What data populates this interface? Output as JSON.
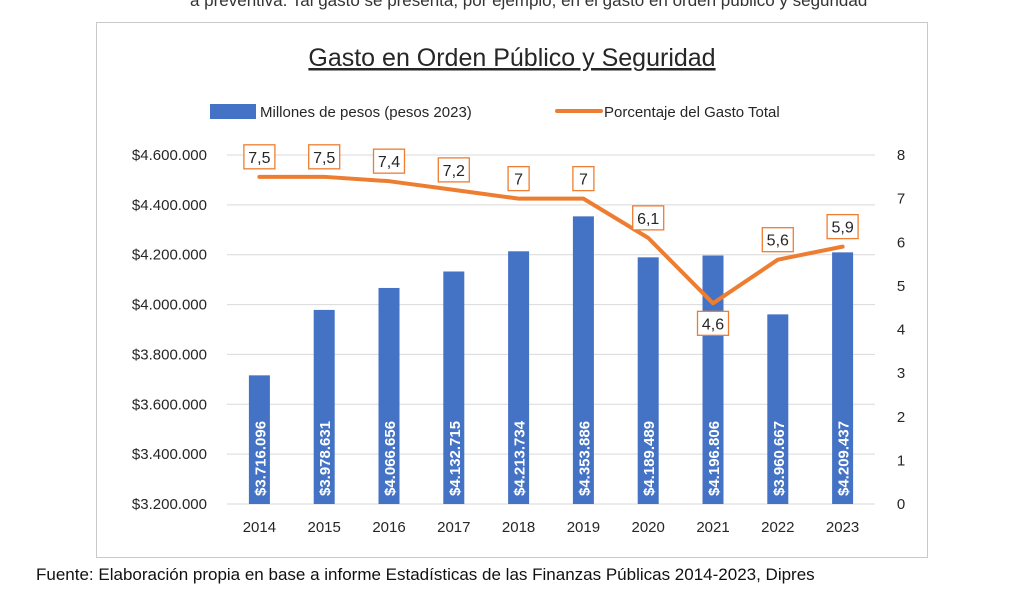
{
  "page": {
    "top_text": "a preventiva. Tal gasto se presenta, por ejemplo, en el gasto en orden público y seguridad",
    "source": "Fuente: Elaboración propia en base a informe Estadísticas de las Finanzas Públicas 2014-2023, Dipres"
  },
  "colors": {
    "bar": "#4472C4",
    "line": "#ED7D31",
    "text": "#262626"
  },
  "chart_data": {
    "type": "bar+line",
    "title": "Gasto en Orden Público y Seguridad",
    "categories": [
      "2014",
      "2015",
      "2016",
      "2017",
      "2018",
      "2019",
      "2020",
      "2021",
      "2022",
      "2023"
    ],
    "series": [
      {
        "name": "Millones de pesos (pesos 2023)",
        "type": "bar",
        "axis": "left",
        "values": [
          3716096,
          3978631,
          4066656,
          4132715,
          4213734,
          4353886,
          4189489,
          4196806,
          3960667,
          4209437
        ],
        "labels": [
          "$3.716.096",
          "$3.978.631",
          "$4.066.656",
          "$4.132.715",
          "$4.213.734",
          "$4.353.886",
          "$4.189.489",
          "$4.196.806",
          "$3.960.667",
          "$4.209.437"
        ]
      },
      {
        "name": "Porcentaje del Gasto Total",
        "type": "line",
        "axis": "right",
        "values": [
          7.5,
          7.5,
          7.4,
          7.2,
          7,
          7,
          6.1,
          4.6,
          5.6,
          5.9
        ],
        "labels": [
          "7,5",
          "7,5",
          "7,4",
          "7,2",
          "7",
          "7",
          "6,1",
          "4,6",
          "5,6",
          "5,9"
        ]
      }
    ],
    "y_left": {
      "min": 3200000,
      "max": 4600000,
      "ticks": [
        3200000,
        3400000,
        3600000,
        3800000,
        4000000,
        4200000,
        4400000,
        4600000
      ],
      "tick_labels": [
        "$3.200.000",
        "$3.400.000",
        "$3.600.000",
        "$3.800.000",
        "$4.000.000",
        "$4.200.000",
        "$4.400.000",
        "$4.600.000"
      ]
    },
    "y_right": {
      "min": 0,
      "max": 8,
      "ticks": [
        0,
        1,
        2,
        3,
        4,
        5,
        6,
        7,
        8
      ],
      "tick_labels": [
        "0",
        "1",
        "2",
        "3",
        "4",
        "5",
        "6",
        "7",
        "8"
      ]
    },
    "legend_position": "top",
    "grid": true
  }
}
